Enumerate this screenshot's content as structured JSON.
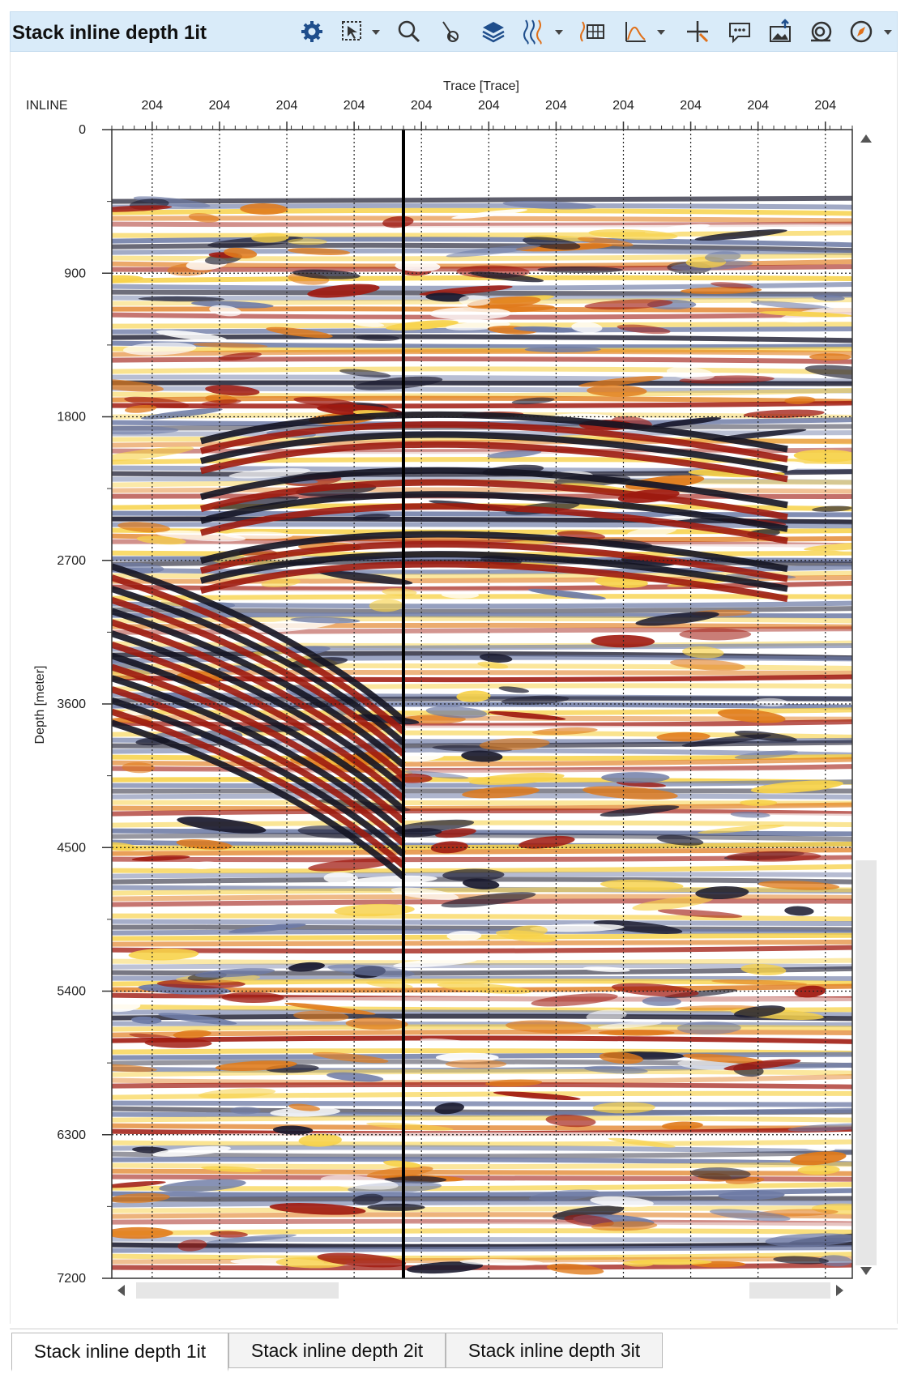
{
  "window": {
    "title": "Stack inline depth 1it"
  },
  "toolbar": {
    "icons": [
      "gear-icon",
      "select-region-icon",
      "zoom-icon",
      "wellbore-icon",
      "layers-icon",
      "wiggle-icon",
      "seismic-grid-icon",
      "histogram-icon",
      "crosshair-icon",
      "comment-icon",
      "export-image-icon",
      "capture-icon",
      "compass-icon"
    ]
  },
  "axes": {
    "top_title": "Trace [Trace]",
    "top_row_label": "INLINE",
    "top_tick_labels": [
      "204",
      "204",
      "204",
      "204",
      "204",
      "204",
      "204",
      "204",
      "204",
      "204",
      "204"
    ],
    "left_title": "Depth [meter]",
    "left_tick_labels": [
      "0",
      "900",
      "1800",
      "2700",
      "3600",
      "4500",
      "5400",
      "6300",
      "7200"
    ]
  },
  "chart_data": {
    "type": "heatmap",
    "title": "",
    "xlabel": "Trace [Trace]",
    "ylabel": "Depth [meter]",
    "x_row_label": "INLINE",
    "x_ticks": [
      "204",
      "204",
      "204",
      "204",
      "204",
      "204",
      "204",
      "204",
      "204",
      "204",
      "204"
    ],
    "y_ticks": [
      0,
      900,
      1800,
      2700,
      3600,
      4500,
      5400,
      6300,
      7200
    ],
    "ylim": [
      0,
      7200
    ],
    "grid": true,
    "data_start_depth": 450,
    "colormap": [
      "#1a1a2e",
      "#6e7ba6",
      "#ffffff",
      "#f7d24a",
      "#e07a1a",
      "#a01a10"
    ],
    "reflectors": [
      {
        "start_depth": 1800,
        "end_depth": 2050
      },
      {
        "start_depth": 2150,
        "end_depth": 2450
      },
      {
        "start_depth": 2550,
        "end_depth": 2800
      },
      {
        "start_depth": 3500,
        "end_depth": 4550
      }
    ]
  },
  "tabs": [
    {
      "label": "Stack inline depth 1it",
      "active": true
    },
    {
      "label": "Stack inline depth 2it",
      "active": false
    },
    {
      "label": "Stack inline depth 3it",
      "active": false
    }
  ],
  "colors": {
    "titlebar_bg": "#d9ebf9",
    "icon_blue": "#1f4e8c",
    "icon_orange": "#e0701a"
  }
}
